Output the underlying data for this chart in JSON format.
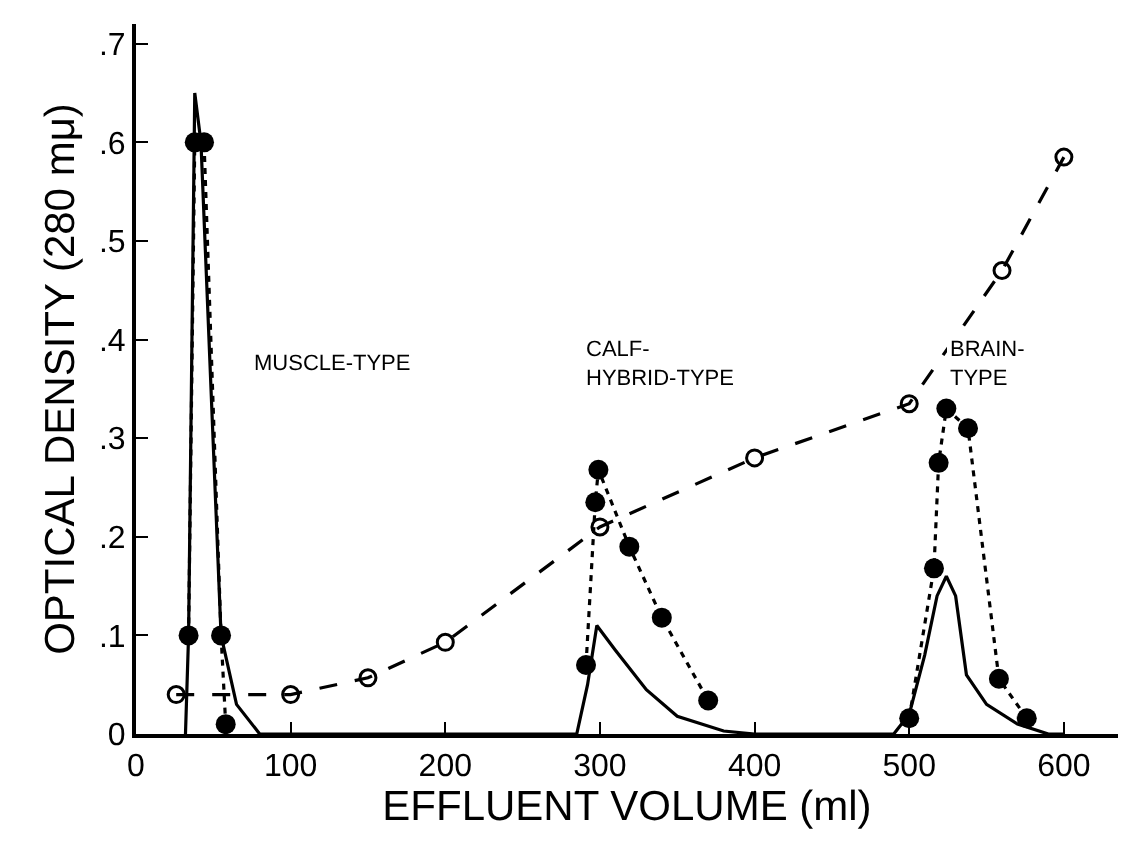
{
  "chart_data": {
    "type": "line",
    "xlabel": "EFFLUENT VOLUME (ml)",
    "ylabel": "OPTICAL DENSITY (280 mμ)",
    "xlim": [
      0,
      635
    ],
    "ylim": [
      0,
      0.72
    ],
    "xticks": [
      0,
      100,
      200,
      300,
      400,
      500,
      600
    ],
    "yticks": [
      {
        "value": 0,
        "label": "0"
      },
      {
        "value": 0.1,
        "label": ".1"
      },
      {
        "value": 0.2,
        "label": ".2"
      },
      {
        "value": 0.3,
        "label": ".3"
      },
      {
        "value": 0.4,
        "label": ".4"
      },
      {
        "value": 0.5,
        "label": ".5"
      },
      {
        "value": 0.6,
        "label": ".6"
      },
      {
        "value": 0.7,
        "label": ".7"
      }
    ],
    "grid": false,
    "series": [
      {
        "color": "#000000",
        "line_style": "solid",
        "marker": "none",
        "x": [
          32,
          34,
          38,
          42,
          55,
          65,
          80,
          285,
          292,
          298,
          310,
          330,
          350,
          380,
          400,
          490,
          500,
          510,
          518,
          524,
          530,
          537,
          550,
          570,
          590,
          600
        ],
        "values": [
          0,
          0.1,
          0.65,
          0.6,
          0.1,
          0.03,
          0,
          0,
          0.05,
          0.11,
          0.085,
          0.045,
          0.018,
          0.003,
          0,
          0,
          0.02,
          0.08,
          0.14,
          0.16,
          0.14,
          0.06,
          0.03,
          0.01,
          0,
          0
        ]
      },
      {
        "color": "#000000",
        "line_style": "dotted",
        "marker": "circle",
        "x": [
          34,
          38,
          44,
          55,
          58,
          150,
          291,
          297,
          299,
          319,
          340,
          370,
          450,
          500,
          516,
          519,
          524,
          538,
          558,
          576
        ],
        "values": [
          0.1,
          0.6,
          0.6,
          0.1,
          0.01,
          null,
          0.07,
          0.235,
          0.268,
          0.19,
          0.118,
          0.034,
          null,
          0.016,
          0.168,
          0.275,
          0.33,
          0.31,
          0.056,
          0.016
        ]
      },
      {
        "color": "#000000",
        "line_style": "dashed",
        "marker": "circle-open",
        "x": [
          26,
          100,
          150,
          200,
          300,
          400,
          500,
          560,
          600
        ],
        "values": [
          0.04,
          0.04,
          0.057,
          0.093,
          0.21,
          0.28,
          0.335,
          0.47,
          0.585
        ]
      }
    ],
    "annotations": [
      "MUSCLE-TYPE",
      "CALF-\nHYBRID-TYPE",
      "BRAIN-\nTYPE"
    ]
  }
}
